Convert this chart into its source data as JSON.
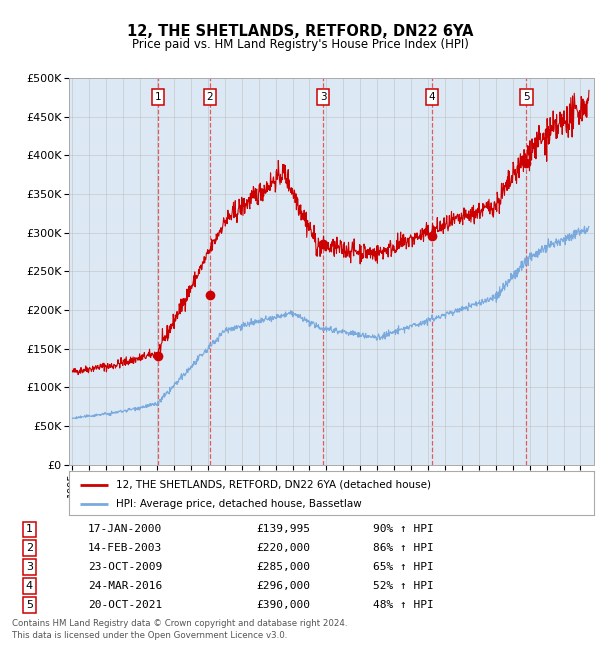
{
  "title": "12, THE SHETLANDS, RETFORD, DN22 6YA",
  "subtitle": "Price paid vs. HM Land Registry's House Price Index (HPI)",
  "bg_color": "#dce9f5",
  "grid_color": "#bbbbbb",
  "red_line_color": "#cc0000",
  "blue_line_color": "#7aaadd",
  "sale_marker_color": "#cc0000",
  "vline_color": "#dd4444",
  "ylim": [
    0,
    500000
  ],
  "yticks": [
    0,
    50000,
    100000,
    150000,
    200000,
    250000,
    300000,
    350000,
    400000,
    450000,
    500000
  ],
  "ytick_labels": [
    "£0",
    "£50K",
    "£100K",
    "£150K",
    "£200K",
    "£250K",
    "£300K",
    "£350K",
    "£400K",
    "£450K",
    "£500K"
  ],
  "xlim_start": 1994.8,
  "xlim_end": 2025.8,
  "sales": [
    {
      "num": 1,
      "year": 2000.04,
      "price": 139995,
      "label": "17-JAN-2000",
      "pct": "90%",
      "hpi_label": "HPI"
    },
    {
      "num": 2,
      "year": 2003.12,
      "price": 220000,
      "label": "14-FEB-2003",
      "pct": "86%",
      "hpi_label": "HPI"
    },
    {
      "num": 3,
      "year": 2009.81,
      "price": 285000,
      "label": "23-OCT-2009",
      "pct": "65%",
      "hpi_label": "HPI"
    },
    {
      "num": 4,
      "year": 2016.23,
      "price": 296000,
      "label": "24-MAR-2016",
      "pct": "52%",
      "hpi_label": "HPI"
    },
    {
      "num": 5,
      "year": 2021.81,
      "price": 390000,
      "label": "20-OCT-2021",
      "pct": "48%",
      "hpi_label": "HPI"
    }
  ],
  "legend_line1": "12, THE SHETLANDS, RETFORD, DN22 6YA (detached house)",
  "legend_line2": "HPI: Average price, detached house, Bassetlaw",
  "footer1": "Contains HM Land Registry data © Crown copyright and database right 2024.",
  "footer2": "This data is licensed under the Open Government Licence v3.0."
}
